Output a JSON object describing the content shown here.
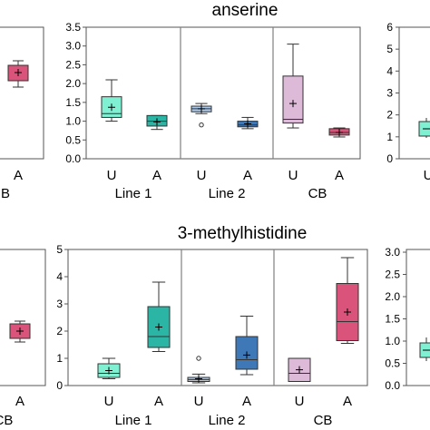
{
  "colors": {
    "line1_U": "#7ff0d2",
    "line1_A": "#2bb5a5",
    "line2_U": "#a9c8ea",
    "line2_A": "#3e78b6",
    "cb_U": "#dcbad8",
    "cb_A": "#d9537a",
    "left_A": "#d9537a",
    "right_teal": "#7ff0d2",
    "frame": "#555555",
    "divider": "#808080"
  },
  "chart_data": [
    {
      "type": "box",
      "title": "anserine",
      "ylim": [
        0,
        3.5
      ],
      "yticks": [
        "0.0",
        "0.5",
        "1.0",
        "1.5",
        "2.0",
        "2.5",
        "3.0",
        "3.5"
      ],
      "groups": [
        "Line 1",
        "Line 2",
        "CB"
      ],
      "categories": [
        "U",
        "A",
        "U",
        "A",
        "U",
        "A"
      ],
      "boxes": [
        {
          "group": "Line 1",
          "category": "U",
          "whisker_low": 1.0,
          "q1": 1.1,
          "median": 1.2,
          "q3": 1.65,
          "whisker_high": 2.1,
          "mean": 1.37,
          "outliers": []
        },
        {
          "group": "Line 1",
          "category": "A",
          "whisker_low": 0.78,
          "q1": 0.87,
          "median": 1.0,
          "q3": 1.15,
          "whisker_high": 1.15,
          "mean": 0.98,
          "outliers": []
        },
        {
          "group": "Line 2",
          "category": "U",
          "whisker_low": 1.2,
          "q1": 1.25,
          "median": 1.33,
          "q3": 1.4,
          "whisker_high": 1.47,
          "mean": 1.33,
          "outliers": [
            0.9
          ]
        },
        {
          "group": "Line 2",
          "category": "A",
          "whisker_low": 0.8,
          "q1": 0.85,
          "median": 0.9,
          "q3": 1.0,
          "whisker_high": 1.1,
          "mean": 0.93,
          "outliers": []
        },
        {
          "group": "CB",
          "category": "U",
          "whisker_low": 0.82,
          "q1": 0.95,
          "median": 1.05,
          "q3": 2.2,
          "whisker_high": 3.05,
          "mean": 1.47,
          "outliers": []
        },
        {
          "group": "CB",
          "category": "A",
          "whisker_low": 0.58,
          "q1": 0.63,
          "median": 0.7,
          "q3": 0.8,
          "whisker_high": 0.82,
          "mean": 0.7,
          "outliers": []
        }
      ]
    },
    {
      "type": "box",
      "title": "3-methylhistidine",
      "ylim": [
        0,
        5
      ],
      "yticks": [
        "0",
        "1",
        "2",
        "3",
        "4",
        "5"
      ],
      "groups": [
        "Line 1",
        "Line 2",
        "CB"
      ],
      "categories": [
        "U",
        "A",
        "U",
        "A",
        "U",
        "A"
      ],
      "boxes": [
        {
          "group": "Line 1",
          "category": "U",
          "whisker_low": 0.25,
          "q1": 0.3,
          "median": 0.45,
          "q3": 0.8,
          "whisker_high": 1.0,
          "mean": 0.55,
          "outliers": []
        },
        {
          "group": "Line 1",
          "category": "A",
          "whisker_low": 1.25,
          "q1": 1.4,
          "median": 1.8,
          "q3": 2.9,
          "whisker_high": 3.8,
          "mean": 2.15,
          "outliers": []
        },
        {
          "group": "Line 2",
          "category": "U",
          "whisker_low": 0.1,
          "q1": 0.15,
          "median": 0.22,
          "q3": 0.3,
          "whisker_high": 0.42,
          "mean": 0.25,
          "outliers": [
            1.0
          ]
        },
        {
          "group": "Line 2",
          "category": "A",
          "whisker_low": 0.4,
          "q1": 0.6,
          "median": 0.95,
          "q3": 1.8,
          "whisker_high": 2.55,
          "mean": 1.12,
          "outliers": []
        },
        {
          "group": "CB",
          "category": "U",
          "whisker_low": 0.15,
          "q1": 0.15,
          "median": 0.45,
          "q3": 1.0,
          "whisker_high": 1.0,
          "mean": 0.58,
          "outliers": []
        },
        {
          "group": "CB",
          "category": "A",
          "whisker_low": 1.55,
          "q1": 1.65,
          "median": 2.35,
          "q3": 3.75,
          "whisker_high": 4.7,
          "mean": 2.7,
          "outliers": []
        }
      ]
    }
  ],
  "partial_panels": {
    "top_left": {
      "category_labels": [
        "B",
        "A"
      ]
    },
    "top_right": {
      "yticks": [
        "0",
        "1",
        "2",
        "3",
        "4",
        "5",
        "6"
      ],
      "category_labels": [
        "U"
      ]
    },
    "bottom_left": {
      "category_labels": [
        "CB",
        "A"
      ]
    },
    "bottom_right": {
      "yticks": [
        "0.0",
        "0.5",
        "1.0",
        "1.5",
        "2.0",
        "2.5",
        "3.0"
      ]
    }
  }
}
